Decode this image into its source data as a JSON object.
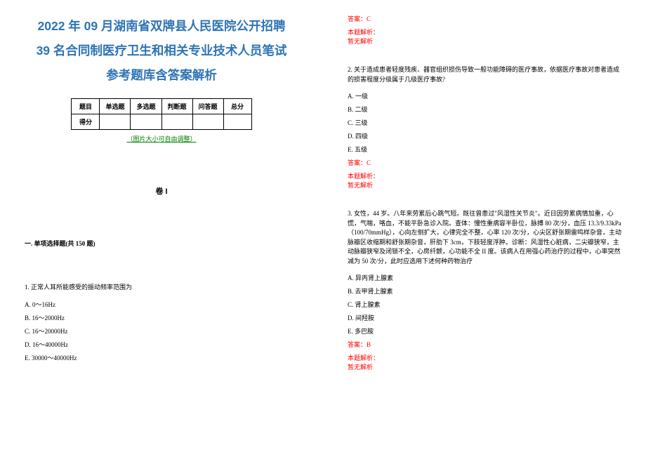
{
  "title_line1": "2022 年 09 月湖南省双牌县人民医院公开招聘",
  "title_line2": "39 名合同制医疗卫生和相关专业技术人员笔试",
  "title_line3": "参考题库含答案解析",
  "table_headers": [
    "题目",
    "单选题",
    "多选题",
    "判断题",
    "问答题",
    "总分"
  ],
  "table_row2_h": "得分",
  "note": "（图片大小可自由调整）",
  "juan": "卷 I",
  "section": "一. 单项选择题(共 150 题)",
  "q1": {
    "text": "1. 正常人耳所能感受的振动频率范围为",
    "opts": [
      "A. 0～16Hz",
      "B. 16～2000Hz",
      "C. 16～20000Hz",
      "D. 16～40000Hz",
      "E. 30000～40000Hz"
    ]
  },
  "q1_ans": "答案：C",
  "ana_label": "本题解析：",
  "ana_none": "暂无解析",
  "q2": {
    "text": "2. 关于造成患者轻度残疾、器官组织损伤导致一般功能障碍的医疗事故，依据医疗事故对患者造成的损害程度分级属于几级医疗事故?",
    "opts": [
      "A. 一级",
      "B. 二级",
      "C. 三级",
      "D. 四级",
      "E. 五级"
    ]
  },
  "q2_ans": "答案：C",
  "q3": {
    "text": "3. 女性，44 岁。八年来劳累后心跳气短。既往曾患过\"风湿性关节炎\"。近日因劳累病情加重，心慌，气喘，咯血，不能平卧急诊入院。查体：慢性重病容半卧位，脉搏 80 次/分，血压 13.3/9.33kPa（100/70mmHg），心向左侧扩大，心律完全不整，心率 120 次/分，心尖区舒张期雷鸣样杂音，主动脉瓣区收缩期和舒张期杂音，肝肋下 3cm，下肢轻度浮肿。诊断：风湿性心脏病，二尖瓣狭窄，主动脉瓣狭窄及闭锁不全，心房纤颤，心功能不全 II 度。该病人在用强心药治疗的过程中，心率突然减为 50 次/分，此时应选用下述何种药物治疗",
    "opts": [
      "A. 异丙肾上腺素",
      "B. 去甲肾上腺素",
      "C. 肾上腺素",
      "D. 间羟胺",
      "E. 多巴胺"
    ]
  },
  "q3_ans": "答案：B"
}
